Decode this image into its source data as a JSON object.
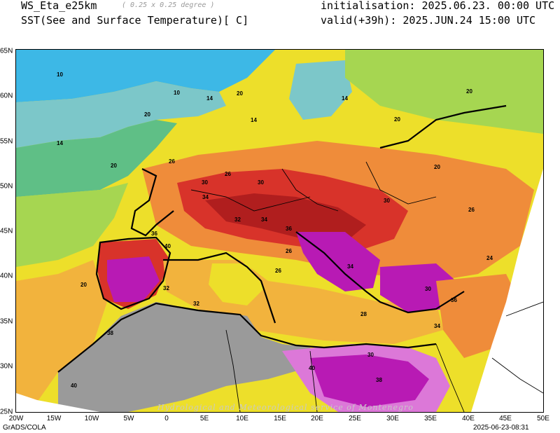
{
  "header": {
    "model_name": "WS_Eta_e25km",
    "resolution": "( 0.25 x 0.25 degree )",
    "parameter": "SST(See and Surface Temperature)[ C]",
    "initialisation": "initialisation: 2025.06.23. 00:00 UTC",
    "valid": "valid(+39h): 2025.JUN.24 15:00 UTC"
  },
  "map": {
    "longitude_labels": [
      "20W",
      "15W",
      "10W",
      "5W",
      "0",
      "5E",
      "10E",
      "15E",
      "20E",
      "25E",
      "30E",
      "35E",
      "40E",
      "45E",
      "50E"
    ],
    "latitude_labels": [
      "65N",
      "60N",
      "55N",
      "50N",
      "45N",
      "40N",
      "35N",
      "30N",
      "25N"
    ],
    "contour_labels": [
      {
        "text": "10"
      },
      {
        "text": "10"
      },
      {
        "text": "14"
      },
      {
        "text": "14"
      },
      {
        "text": "14"
      },
      {
        "text": "14"
      },
      {
        "text": "20"
      },
      {
        "text": "20"
      },
      {
        "text": "20"
      },
      {
        "text": "20"
      },
      {
        "text": "20"
      },
      {
        "text": "20"
      },
      {
        "text": "20"
      },
      {
        "text": "26"
      },
      {
        "text": "26"
      },
      {
        "text": "26"
      },
      {
        "text": "26"
      },
      {
        "text": "30"
      },
      {
        "text": "30"
      },
      {
        "text": "30"
      },
      {
        "text": "30"
      },
      {
        "text": "32"
      },
      {
        "text": "32"
      },
      {
        "text": "34"
      },
      {
        "text": "34"
      },
      {
        "text": "34"
      },
      {
        "text": "36"
      },
      {
        "text": "36"
      },
      {
        "text": "38"
      },
      {
        "text": "38"
      },
      {
        "text": "40"
      },
      {
        "text": "40"
      },
      {
        "text": "40"
      },
      {
        "text": "30"
      },
      {
        "text": "32"
      },
      {
        "text": "34"
      },
      {
        "text": "36"
      },
      {
        "text": "26"
      },
      {
        "text": "28"
      },
      {
        "text": "24"
      }
    ],
    "colors": {
      "cold": "#3db8e6",
      "cool": "#7cc7c9",
      "mild": "#5fbf86",
      "lime": "#a6d651",
      "yellow": "#eddf2a",
      "orange_light": "#f2b33d",
      "orange": "#ef8c3a",
      "red": "#d8332a",
      "darkred": "#b01e1e",
      "magenta": "#b81ab4",
      "pink": "#dc78d8",
      "land_gray": "#9a9a9a"
    }
  },
  "footer": {
    "left": "GrADS/COLA",
    "right": "2025-06-23-08:31",
    "watermark": "Hydrological and Meteorological service of Montenegro"
  }
}
